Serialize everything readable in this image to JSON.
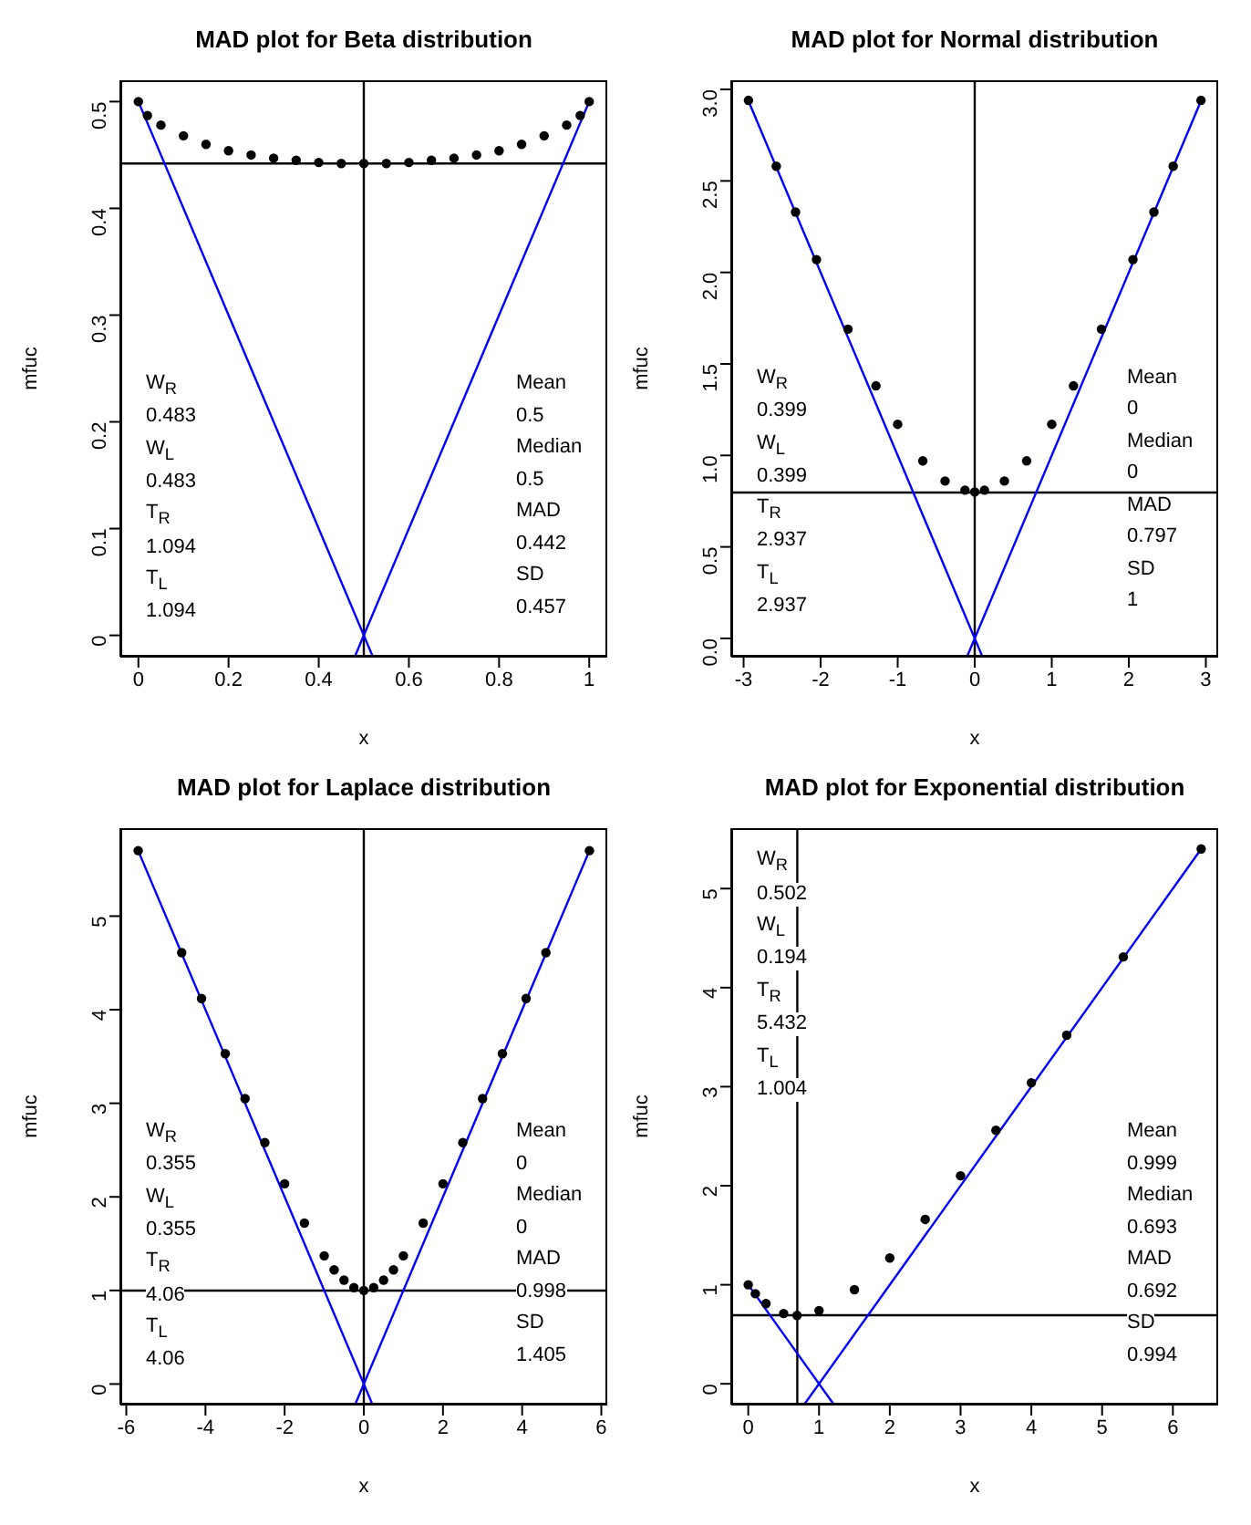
{
  "chart_data": [
    {
      "type": "scatter",
      "title": "MAD plot for Beta distribution",
      "xlabel": "x",
      "ylabel": "mfuc",
      "xlim": [
        -0.04,
        1.04
      ],
      "ylim": [
        -0.02,
        0.52
      ],
      "xticks": [
        0,
        0.2,
        0.4,
        0.6,
        0.8,
        1.0
      ],
      "yticks": [
        0,
        0.1,
        0.2,
        0.3,
        0.4,
        0.5
      ],
      "series": [
        {
          "marker": "circle",
          "color": "#000000",
          "x": [
            0,
            0.02,
            0.05,
            0.1,
            0.15,
            0.2,
            0.25,
            0.3,
            0.35,
            0.4,
            0.45,
            0.5,
            0.55,
            0.6,
            0.65,
            0.7,
            0.75,
            0.8,
            0.85,
            0.9,
            0.95,
            0.98,
            1
          ],
          "values": [
            0.5,
            0.487,
            0.478,
            0.468,
            0.46,
            0.454,
            0.45,
            0.447,
            0.445,
            0.443,
            0.442,
            0.442,
            0.442,
            0.443,
            0.445,
            0.447,
            0.45,
            0.454,
            0.46,
            0.468,
            0.478,
            0.487,
            0.5
          ]
        },
        {
          "type": "line",
          "marker": "none",
          "color": "#0000ff",
          "x": [
            0,
            0.52
          ],
          "values": [
            0.5,
            -0.02
          ]
        },
        {
          "type": "line",
          "marker": "none",
          "color": "#0000ff",
          "x": [
            0.48,
            1
          ],
          "values": [
            -0.02,
            0.5
          ]
        }
      ],
      "ref_lines": [
        {
          "axis": "x",
          "value": 0.5,
          "color": "#000000"
        },
        {
          "axis": "y",
          "value": 0.442,
          "color": "#000000"
        }
      ],
      "annotations": [
        "W$_{R}$",
        "0.483",
        "W$_{L}$",
        "0.483",
        "T$_{R}$",
        "1.094",
        "T$_{L}$",
        "1.094",
        "Mean",
        "0.5",
        "Median",
        "0.5",
        "MAD",
        "0.442",
        "SD",
        "0.457"
      ]
    },
    {
      "type": "scatter",
      "title": "MAD plot for Normal distribution",
      "xlabel": "x",
      "ylabel": "mfuc",
      "xlim": [
        -3.16,
        3.16
      ],
      "ylim": [
        -0.1,
        3.05
      ],
      "xticks": [
        -3,
        -2,
        -1,
        0,
        1,
        2,
        3
      ],
      "yticks": [
        {
          "value": 0,
          "label": "0.0"
        },
        0.5,
        {
          "value": 1,
          "label": "1.0"
        },
        1.5,
        {
          "value": 2,
          "label": "2.0"
        },
        2.5,
        {
          "value": 3,
          "label": "3.0"
        }
      ],
      "series": [
        {
          "marker": "circle",
          "color": "#000000",
          "x": [
            -2.937,
            -2.576,
            -2.326,
            -2.054,
            -1.645,
            -1.282,
            -1,
            -0.674,
            -0.385,
            -0.126,
            0,
            0.126,
            0.385,
            0.674,
            1,
            1.282,
            1.645,
            2.054,
            2.326,
            2.576,
            2.937
          ],
          "values": [
            2.94,
            2.58,
            2.33,
            2.07,
            1.69,
            1.38,
            1.17,
            0.97,
            0.86,
            0.81,
            0.8,
            0.81,
            0.86,
            0.97,
            1.17,
            1.38,
            1.69,
            2.07,
            2.33,
            2.58,
            2.94
          ]
        },
        {
          "type": "line",
          "marker": "none",
          "color": "#0000ff",
          "x": [
            -2.94,
            0.1
          ],
          "values": [
            2.94,
            -0.1
          ]
        },
        {
          "type": "line",
          "marker": "none",
          "color": "#0000ff",
          "x": [
            -0.1,
            2.94
          ],
          "values": [
            -0.1,
            2.94
          ]
        }
      ],
      "ref_lines": [
        {
          "axis": "x",
          "value": 0,
          "color": "#000000"
        },
        {
          "axis": "y",
          "value": 0.797,
          "color": "#000000"
        }
      ],
      "annotations": [
        "W$_{R}$",
        "0.399",
        "W$_{L}$",
        "0.399",
        "T$_{R}$",
        "2.937",
        "T$_{L}$",
        "2.937",
        "Mean",
        "0",
        "Median",
        "0",
        "MAD",
        "0.797",
        "SD",
        "1"
      ]
    },
    {
      "type": "scatter",
      "title": "MAD plot for Laplace distribution",
      "xlabel": "x",
      "ylabel": "mfuc",
      "xlim": [
        -6.15,
        6.15
      ],
      "ylim": [
        -0.22,
        5.94
      ],
      "xticks": [
        -6,
        -4,
        -2,
        0,
        2,
        4,
        6
      ],
      "yticks": [
        0,
        1,
        2,
        3,
        4,
        5
      ],
      "series": [
        {
          "marker": "circle",
          "color": "#000000",
          "x": [
            -5.7,
            -4.6,
            -4.1,
            -3.5,
            -3,
            -2.5,
            -2,
            -1.5,
            -1,
            -0.75,
            -0.5,
            -0.25,
            0,
            0.25,
            0.5,
            0.75,
            1,
            1.5,
            2,
            2.5,
            3,
            3.5,
            4.1,
            4.6,
            5.7
          ],
          "values": [
            5.7,
            4.61,
            4.12,
            3.53,
            3.05,
            2.58,
            2.14,
            1.72,
            1.37,
            1.22,
            1.11,
            1.03,
            1,
            1.03,
            1.11,
            1.22,
            1.37,
            1.72,
            2.14,
            2.58,
            3.05,
            3.53,
            4.12,
            4.61,
            5.7
          ]
        },
        {
          "type": "line",
          "marker": "none",
          "color": "#0000ff",
          "x": [
            -5.7,
            0.22
          ],
          "values": [
            5.7,
            -0.22
          ]
        },
        {
          "type": "line",
          "marker": "none",
          "color": "#0000ff",
          "x": [
            -0.22,
            5.7
          ],
          "values": [
            -0.22,
            5.7
          ]
        }
      ],
      "ref_lines": [
        {
          "axis": "x",
          "value": 0,
          "color": "#000000"
        },
        {
          "axis": "y",
          "value": 0.998,
          "color": "#000000"
        }
      ],
      "annotations": [
        "W$_{R}$",
        "0.355",
        "W$_{L}$",
        "0.355",
        "T$_{R}$",
        "4.06",
        "T$_{L}$",
        "4.06",
        "Mean",
        "0",
        "Median",
        "0",
        "MAD",
        "0.998",
        "SD",
        "1.405"
      ]
    },
    {
      "type": "scatter",
      "title": "MAD plot for Exponential distribution",
      "xlabel": "x",
      "ylabel": "mfuc",
      "xlim": [
        -0.24,
        6.64
      ],
      "ylim": [
        -0.21,
        5.61
      ],
      "xticks": [
        0,
        1,
        2,
        3,
        4,
        5,
        6
      ],
      "yticks": [
        0,
        1,
        2,
        3,
        4,
        5
      ],
      "series": [
        {
          "marker": "circle",
          "color": "#000000",
          "x": [
            0,
            0.1,
            0.25,
            0.5,
            0.69,
            1,
            1.5,
            2,
            2.5,
            3,
            3.5,
            4,
            4.5,
            5.3,
            6.4
          ],
          "values": [
            1,
            0.91,
            0.81,
            0.71,
            0.69,
            0.74,
            0.95,
            1.27,
            1.66,
            2.1,
            2.56,
            3.04,
            3.52,
            4.31,
            5.4
          ]
        },
        {
          "type": "line",
          "marker": "none",
          "color": "#0000ff",
          "x": [
            0,
            1.21
          ],
          "values": [
            1,
            -0.21
          ]
        },
        {
          "type": "line",
          "marker": "none",
          "color": "#0000ff",
          "x": [
            0.79,
            6.4
          ],
          "values": [
            -0.21,
            5.4
          ]
        }
      ],
      "ref_lines": [
        {
          "axis": "x",
          "value": 0.693,
          "color": "#000000"
        },
        {
          "axis": "y",
          "value": 0.692,
          "color": "#000000"
        }
      ],
      "annotations": [
        "W$_{R}$",
        "0.502",
        "W$_{L}$",
        "0.194",
        "T$_{R}$",
        "5.432",
        "T$_{L}$",
        "1.004",
        "Mean",
        "0.999",
        "Median",
        "0.693",
        "MAD",
        "0.692",
        "SD",
        "0.994"
      ]
    }
  ]
}
